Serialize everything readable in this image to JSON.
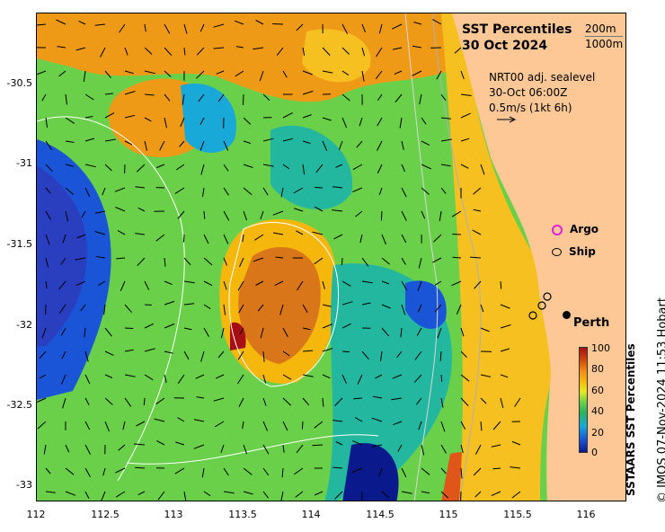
{
  "title": {
    "line1": "SST Percentiles",
    "line2": "30 Oct 2024"
  },
  "depth_legend": {
    "line1": "200m",
    "line2": "1000m"
  },
  "current": {
    "line1": "NRT00 adj. sealevel",
    "line2": "30-Oct 06:00Z",
    "line3": "0.5m/s (1kt 6h)"
  },
  "legend": {
    "argo": "Argo",
    "ship": "Ship",
    "argo_color": "#e020e0"
  },
  "city": {
    "name": "Perth"
  },
  "colorbar": {
    "title": "SSTAARS SST Percentiles",
    "ticks": [
      "100",
      "80",
      "60",
      "40",
      "20",
      "0"
    ]
  },
  "axes": {
    "y_ticks": [
      "-30.5",
      "-31",
      "-31.5",
      "-32",
      "-32.5",
      "-33"
    ],
    "x_ticks": [
      "112",
      "112.5",
      "113",
      "113.5",
      "114",
      "114.5",
      "115",
      "115.5",
      "116"
    ]
  },
  "credit": "© IMOS 07-Nov-2024 11:53 Hobart",
  "colors": {
    "land": "#fdc896",
    "high": "#a80f14",
    "low": "#0a1a8c"
  }
}
